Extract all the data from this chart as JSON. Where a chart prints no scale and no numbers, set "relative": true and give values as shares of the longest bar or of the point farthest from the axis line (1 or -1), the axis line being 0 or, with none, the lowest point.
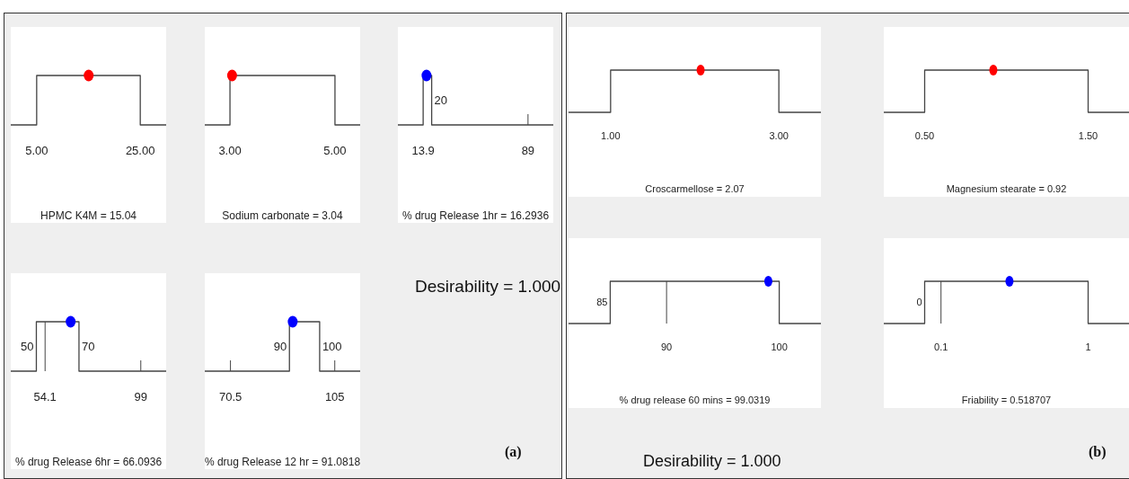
{
  "chart_data": [
    {
      "type": "line",
      "relative": true,
      "xlabel": "HPMC K4M = 15.04",
      "xlim": [
        0,
        30
      ],
      "xticks": [
        {
          "value": 5,
          "label": "5.00"
        },
        {
          "value": 25,
          "label": "25.00"
        }
      ],
      "series": [
        {
          "type": "line",
          "color": "#444444",
          "x": [
            0,
            5,
            5,
            25,
            25,
            30
          ],
          "values": [
            0,
            0,
            1,
            1,
            0,
            0
          ]
        },
        {
          "type": "scatter",
          "color": "#ff0000",
          "x": [
            15.04
          ],
          "values": [
            1
          ]
        }
      ]
    },
    {
      "type": "line",
      "relative": true,
      "xlabel": "Sodium carbonate = 3.04",
      "xlim": [
        2.52,
        5.48
      ],
      "xticks": [
        {
          "value": 3,
          "label": "3.00"
        },
        {
          "value": 5,
          "label": "5.00"
        }
      ],
      "series": [
        {
          "type": "line",
          "color": "#444444",
          "x": [
            2.52,
            3,
            3,
            5,
            5,
            5.48
          ],
          "values": [
            0,
            0,
            1,
            1,
            0,
            0
          ]
        },
        {
          "type": "scatter",
          "color": "#ff0000",
          "x": [
            3.04
          ],
          "values": [
            1
          ]
        }
      ]
    },
    {
      "type": "line",
      "relative": true,
      "xlabel": "% drug Release 1hr = 16.2936",
      "xlim": [
        -4.2,
        107.1
      ],
      "xticks": [
        13.9,
        89
      ],
      "annotations": [
        {
          "text": "20",
          "x": 20
        }
      ],
      "series": [
        {
          "type": "line",
          "color": "#444444",
          "x": [
            -4.2,
            13.9,
            13.9,
            20,
            20,
            107.1
          ],
          "values": [
            0,
            0,
            1,
            1,
            0,
            0
          ]
        },
        {
          "type": "scatter",
          "color": "#0000ff",
          "x": [
            16.2936
          ],
          "values": [
            1
          ]
        }
      ]
    },
    {
      "type": "line",
      "relative": true,
      "xlabel": "% drug Release 6hr = 66.0936",
      "xlim": [
        38,
        110.9
      ],
      "xticks": [
        54.1,
        99
      ],
      "annotations": [
        {
          "text": "50",
          "x": 50
        },
        {
          "text": "70",
          "x": 70
        }
      ],
      "series": [
        {
          "type": "line",
          "color": "#444444",
          "x": [
            38,
            50,
            50,
            70,
            70,
            110.9
          ],
          "values": [
            0,
            0,
            1,
            1,
            0,
            0
          ]
        },
        {
          "type": "scatter",
          "color": "#0000ff",
          "x": [
            66.0936
          ],
          "values": [
            1
          ]
        }
      ]
    },
    {
      "type": "line",
      "relative": true,
      "xlabel": "% drug Release 12 hr = 91.0818",
      "xlim": [
        62,
        113.4
      ],
      "xticks": [
        70.5,
        105
      ],
      "annotations": [
        {
          "text": "90",
          "x": 90
        },
        {
          "text": "100",
          "x": 100
        }
      ],
      "series": [
        {
          "type": "line",
          "color": "#444444",
          "x": [
            62,
            90,
            90,
            100,
            100,
            113.4
          ],
          "values": [
            0,
            0,
            1,
            1,
            0,
            0
          ]
        },
        {
          "type": "scatter",
          "color": "#0000ff",
          "x": [
            91.0818
          ],
          "values": [
            1
          ]
        }
      ]
    },
    {
      "type": "other",
      "annotations": [
        "Desirability = 1.000",
        "(a)"
      ]
    },
    {
      "type": "line",
      "relative": true,
      "xlabel": "Croscarmellose = 2.07",
      "xlim": [
        0.5,
        3.5
      ],
      "xticks": [
        {
          "value": 1,
          "label": "1.00"
        },
        {
          "value": 3,
          "label": "3.00"
        }
      ],
      "series": [
        {
          "type": "line",
          "color": "#444444",
          "x": [
            0.5,
            1,
            1,
            3,
            3,
            3.5
          ],
          "values": [
            0,
            0,
            1,
            1,
            0,
            0
          ]
        },
        {
          "type": "scatter",
          "color": "#ff0000",
          "x": [
            2.07
          ],
          "values": [
            1
          ]
        }
      ]
    },
    {
      "type": "line",
      "relative": true,
      "xlabel": "Magnesium stearate = 0.92",
      "xlim": [
        0.25,
        1.75
      ],
      "xticks": [
        {
          "value": 0.5,
          "label": "0.50"
        },
        {
          "value": 1.5,
          "label": "1.50"
        }
      ],
      "series": [
        {
          "type": "line",
          "color": "#444444",
          "x": [
            0.25,
            0.5,
            0.5,
            1.5,
            1.5,
            1.75
          ],
          "values": [
            0,
            0,
            1,
            1,
            0,
            0
          ]
        },
        {
          "type": "scatter",
          "color": "#ff0000",
          "x": [
            0.92
          ],
          "values": [
            1
          ]
        }
      ]
    },
    {
      "type": "line",
      "relative": true,
      "xlabel": "% drug release 60 mins = 99.0319",
      "xlim": [
        81.3,
        103.7
      ],
      "xticks": [
        90,
        100
      ],
      "annotations": [
        {
          "text": "85",
          "x": 85
        }
      ],
      "series": [
        {
          "type": "line",
          "color": "#444444",
          "x": [
            81.3,
            85,
            85,
            100,
            100,
            103.7
          ],
          "values": [
            0,
            0,
            1,
            1,
            0,
            0
          ]
        },
        {
          "type": "scatter",
          "color": "#0000ff",
          "x": [
            99.0319
          ],
          "values": [
            1
          ]
        }
      ]
    },
    {
      "type": "line",
      "relative": true,
      "xlabel": "Friability = 0.518707",
      "xlim": [
        -0.25,
        1.25
      ],
      "xticks": [
        0.1,
        1
      ],
      "annotations": [
        {
          "text": "0",
          "x": 0
        }
      ],
      "series": [
        {
          "type": "line",
          "color": "#444444",
          "x": [
            -0.25,
            0,
            0,
            1,
            1,
            1.25
          ],
          "values": [
            0,
            0,
            1,
            1,
            0,
            0
          ]
        },
        {
          "type": "scatter",
          "color": "#0000ff",
          "x": [
            0.518707
          ],
          "values": [
            1
          ]
        }
      ]
    },
    {
      "type": "other",
      "annotations": [
        "Desirability = 1.000",
        "(b)"
      ]
    }
  ]
}
